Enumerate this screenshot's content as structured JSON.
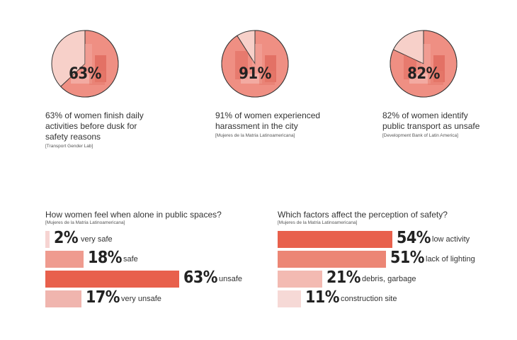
{
  "stats": [
    {
      "percent": 63,
      "label": "63%",
      "text": "63% of women finish daily activities before dusk for safety reasons",
      "source": "[Transport Gender Lab]",
      "icon": "market-photo-icon"
    },
    {
      "percent": 91,
      "label": "91%",
      "text": "91% of women experienced harassment in the city",
      "source": "[Mujeres de la Matria Latinoamericana]",
      "icon": "street-photo-icon"
    },
    {
      "percent": 82,
      "label": "82%",
      "text": "82% of women identify public transport as unsafe",
      "source": "[Development Bank of Latin America]",
      "icon": "transport-photo-icon"
    }
  ],
  "chart_data": [
    {
      "type": "bar",
      "title": "How women feel when alone in public spaces?",
      "subtitle": "[Mujeres de la Matria Latinoamericana]",
      "categories": [
        "very safe",
        "safe",
        "unsafe",
        "very unsafe"
      ],
      "values": [
        2,
        18,
        63,
        17
      ],
      "labels": [
        "2%",
        "18%",
        "63%",
        "17%"
      ],
      "colors": [
        "#f6d4d2",
        "#ef9b8f",
        "#e8604c",
        "#f0b5ae"
      ]
    },
    {
      "type": "bar",
      "title": "Which factors affect the perception of safety?",
      "subtitle": "[Mujeres de la Matria Latinoamericana]",
      "categories": [
        "low activity",
        "lack of lighting",
        "debris, garbage",
        "construction site"
      ],
      "values": [
        54,
        51,
        21,
        11
      ],
      "labels": [
        "54%",
        "51%",
        "21%",
        "11%"
      ],
      "colors": [
        "#e8604c",
        "#ec8675",
        "#f3bab2",
        "#f6d9d6"
      ]
    }
  ],
  "colors": {
    "accent": "#e8604c",
    "photo_tint": "#ef8f83"
  }
}
